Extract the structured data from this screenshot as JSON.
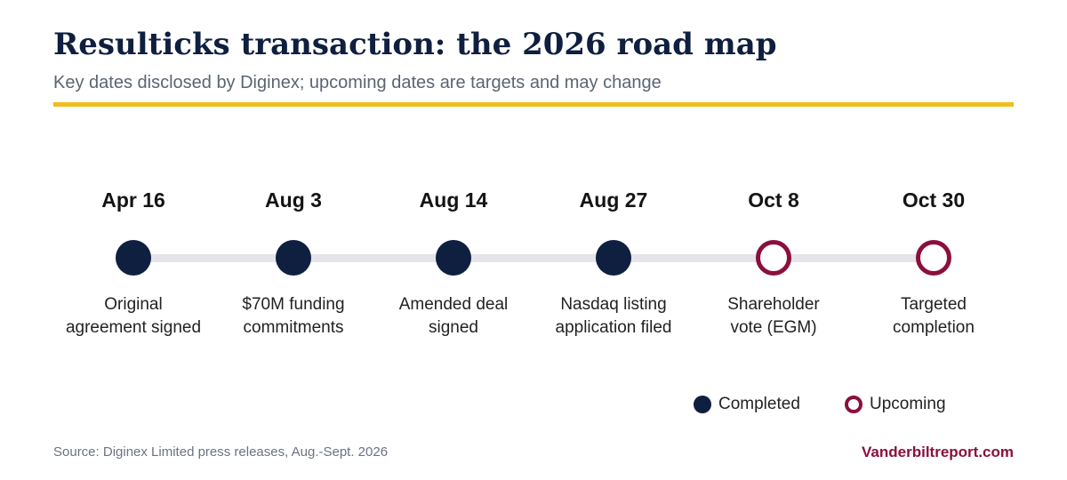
{
  "header": {
    "title": "Resulticks transaction: the 2026 road map",
    "subtitle": "Key dates disclosed by Diginex; upcoming dates are targets and may change"
  },
  "colors": {
    "navy": "#0e1f3f",
    "accent_rule": "#f2bd1c",
    "upcoming": "#8b0f3c",
    "track": "#e3e5ea"
  },
  "milestones": [
    {
      "date": "Apr 16",
      "line1": "Original",
      "line2": "agreement signed",
      "status": "completed"
    },
    {
      "date": "Aug 3",
      "line1": "$70M funding",
      "line2": "commitments",
      "status": "completed"
    },
    {
      "date": "Aug 14",
      "line1": "Amended deal",
      "line2": "signed",
      "status": "completed"
    },
    {
      "date": "Aug 27",
      "line1": "Nasdaq listing",
      "line2": "application filed",
      "status": "completed"
    },
    {
      "date": "Oct 8",
      "line1": "Shareholder",
      "line2": "vote (EGM)",
      "status": "upcoming"
    },
    {
      "date": "Oct 30",
      "line1": "Targeted",
      "line2": "completion",
      "status": "upcoming"
    }
  ],
  "legend": {
    "completed_label": "Completed",
    "upcoming_label": "Upcoming"
  },
  "footer": {
    "source": "Source: Diginex Limited press releases, Aug.-Sept. 2026",
    "brand": "Vanderbiltreport.com"
  }
}
